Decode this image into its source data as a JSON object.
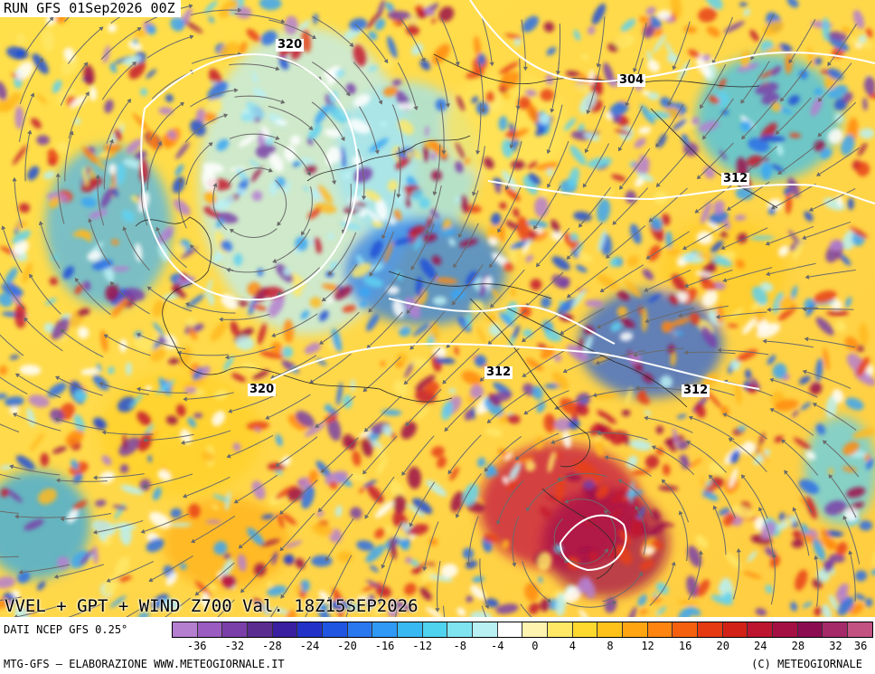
{
  "header": {
    "run_label": "RUN GFS 01Sep2026 00Z"
  },
  "map": {
    "title": "VVEL + GPT + WIND Z700 Val. 18Z15SEP2026",
    "contour_labels": [
      "320",
      "304",
      "312",
      "320",
      "312",
      "312"
    ]
  },
  "legend": {
    "source": "DATI NCEP GFS 0.25°",
    "tick_labels": [
      "-36",
      "-32",
      "-28",
      "-24",
      "-20",
      "-16",
      "-12",
      "-8",
      "-4",
      "0",
      "4",
      "8",
      "12",
      "16",
      "20",
      "24",
      "28",
      "32",
      "36"
    ],
    "colors": [
      "#b57fd0",
      "#9a5cc0",
      "#7a3fa8",
      "#5a2c90",
      "#3a1fa0",
      "#2232c8",
      "#1f55e0",
      "#2a78f0",
      "#2f99f5",
      "#39b9f2",
      "#4fd3ee",
      "#7fe3f0",
      "#b8f0f4",
      "#ffffff",
      "#fff3b0",
      "#ffe866",
      "#ffd92e",
      "#ffc21a",
      "#ffa512",
      "#ff8410",
      "#f5600f",
      "#e63a12",
      "#d22218",
      "#bd1430",
      "#a51044",
      "#8c0c52",
      "#a52a6a",
      "#c25282"
    ]
  },
  "footer": {
    "credit_left": "MTG-GFS — ELABORAZIONE WWW.METEOGIORNALE.IT",
    "credit_right": "(C) METEOGIORNALE"
  }
}
